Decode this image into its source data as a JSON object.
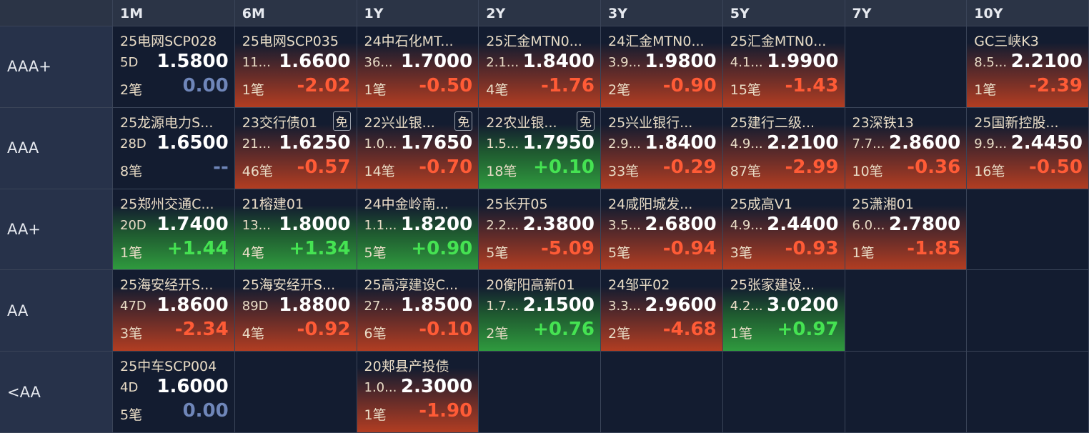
{
  "header": {
    "columns": [
      "1M",
      "6M",
      "1Y",
      "2Y",
      "3Y",
      "5Y",
      "7Y",
      "10Y"
    ]
  },
  "rows": [
    {
      "label": "AAA+",
      "cells": [
        {
          "name": "25电网SCP028",
          "term": "5D",
          "price": "1.5800",
          "count": "2笔",
          "change": "0.00"
        },
        {
          "name": "25电网SCP035",
          "term": "11...",
          "price": "1.6600",
          "count": "1笔",
          "change": "-2.02"
        },
        {
          "name": "24中石化MT...",
          "term": "36...",
          "price": "1.7000",
          "count": "1笔",
          "change": "-0.50"
        },
        {
          "name": "25汇金MTN0...",
          "term": "2.1...",
          "price": "1.8400",
          "count": "4笔",
          "change": "-1.76"
        },
        {
          "name": "24汇金MTN0...",
          "term": "3.9...",
          "price": "1.9800",
          "count": "2笔",
          "change": "-0.90"
        },
        {
          "name": "25汇金MTN0...",
          "term": "4.1...",
          "price": "1.9900",
          "count": "15笔",
          "change": "-1.43"
        },
        null,
        {
          "name": "GC三峡K3",
          "term": "8.5...",
          "price": "2.2100",
          "count": "1笔",
          "change": "-2.39"
        }
      ]
    },
    {
      "label": "AAA",
      "cells": [
        {
          "name": "25龙源电力S...",
          "term": "28D",
          "price": "1.6500",
          "count": "8笔",
          "change": "--"
        },
        {
          "name": "23交行债01",
          "tag": "免",
          "term": "21...",
          "price": "1.6250",
          "count": "46笔",
          "change": "-0.57"
        },
        {
          "name": "22兴业银...",
          "tag": "免",
          "term": "1.0...",
          "price": "1.7650",
          "count": "14笔",
          "change": "-0.70"
        },
        {
          "name": "22农业银...",
          "tag": "免",
          "term": "1.5...",
          "price": "1.7950",
          "count": "18笔",
          "change": "+0.10"
        },
        {
          "name": "25兴业银行...",
          "term": "2.9...",
          "price": "1.8400",
          "count": "33笔",
          "change": "-0.29"
        },
        {
          "name": "25建行二级...",
          "term": "4.9...",
          "price": "2.2100",
          "count": "87笔",
          "change": "-2.99"
        },
        {
          "name": "23深铁13",
          "term": "7.7...",
          "price": "2.8600",
          "count": "10笔",
          "change": "-0.36"
        },
        {
          "name": "25国新控股...",
          "term": "9.9...",
          "price": "2.4450",
          "count": "16笔",
          "change": "-0.50"
        }
      ]
    },
    {
      "label": "AA+",
      "cells": [
        {
          "name": "25郑州交通C...",
          "term": "20D",
          "price": "1.7400",
          "count": "1笔",
          "change": "+1.44"
        },
        {
          "name": "21榕建01",
          "term": "13...",
          "price": "1.8000",
          "count": "4笔",
          "change": "+1.34"
        },
        {
          "name": "24中金岭南...",
          "term": "1.1...",
          "price": "1.8200",
          "count": "5笔",
          "change": "+0.90"
        },
        {
          "name": "25长开05",
          "term": "2.2...",
          "price": "2.3800",
          "count": "5笔",
          "change": "-5.09"
        },
        {
          "name": "24咸阳城发...",
          "term": "3.5...",
          "price": "2.6800",
          "count": "5笔",
          "change": "-0.94"
        },
        {
          "name": "25成高V1",
          "term": "4.9...",
          "price": "2.4400",
          "count": "3笔",
          "change": "-0.93"
        },
        {
          "name": "25潇湘01",
          "term": "6.0...",
          "price": "2.7800",
          "count": "1笔",
          "change": "-1.85"
        },
        null
      ]
    },
    {
      "label": "AA",
      "cells": [
        {
          "name": "25海安经开S...",
          "term": "47D",
          "price": "1.8600",
          "count": "3笔",
          "change": "-2.34"
        },
        {
          "name": "25海安经开S...",
          "term": "89D",
          "price": "1.8800",
          "count": "4笔",
          "change": "-0.92"
        },
        {
          "name": "25高淳建设C...",
          "term": "27...",
          "price": "1.8500",
          "count": "6笔",
          "change": "-0.10"
        },
        {
          "name": "20衡阳高新01",
          "term": "1.7...",
          "price": "2.1500",
          "count": "2笔",
          "change": "+0.76"
        },
        {
          "name": "24邹平02",
          "term": "3.3...",
          "price": "2.9600",
          "count": "2笔",
          "change": "-4.68"
        },
        {
          "name": "25张家建设...",
          "term": "4.2...",
          "price": "3.0200",
          "count": "1笔",
          "change": "+0.97"
        },
        null,
        null
      ]
    },
    {
      "label": "<AA",
      "cells": [
        {
          "name": "25中车SCP004",
          "term": "4D",
          "price": "1.6000",
          "count": "5笔",
          "change": "0.00"
        },
        null,
        {
          "name": "20郏县产投债",
          "term": "1.0...",
          "price": "2.3000",
          "count": "1笔",
          "change": "-1.90"
        },
        null,
        null,
        null,
        null,
        null
      ]
    }
  ]
}
